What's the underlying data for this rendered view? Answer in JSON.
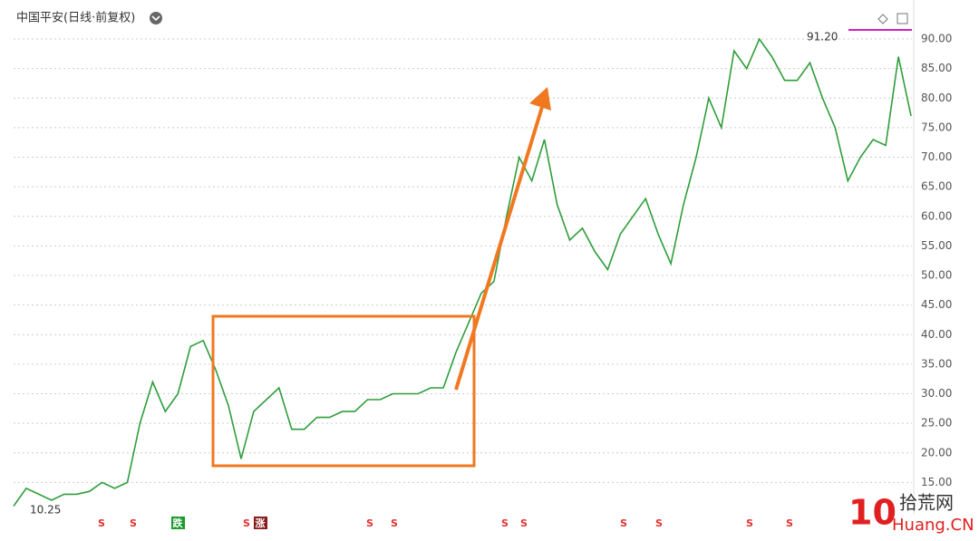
{
  "chart_data": {
    "type": "line",
    "title": "中国平安(日线·前复权)",
    "max_label": "91.20",
    "min_label": "10.25",
    "color": "#2e9e3a",
    "values": [
      11,
      14,
      13,
      12,
      13,
      13,
      13.5,
      15,
      14,
      15,
      25,
      32,
      27,
      30,
      38,
      39,
      34,
      28,
      19,
      27,
      29,
      31,
      24,
      24,
      26,
      26,
      27,
      27,
      29,
      29,
      30,
      30,
      30,
      31,
      31,
      37,
      42,
      47,
      49,
      60,
      70,
      66,
      73,
      62,
      56,
      58,
      54,
      51,
      57,
      60,
      63,
      57,
      52,
      62,
      70,
      80,
      75,
      88,
      85,
      90,
      87,
      83,
      83,
      86,
      80,
      75,
      66,
      70,
      73,
      72,
      87,
      77
    ],
    "ylim": [
      10,
      96.6
    ],
    "yticks": [
      {
        "value": 15,
        "label": "15.00"
      },
      {
        "value": 20,
        "label": "20.00"
      },
      {
        "value": 25,
        "label": "25.00"
      },
      {
        "value": 30,
        "label": "30.00"
      },
      {
        "value": 35,
        "label": "35.00"
      },
      {
        "value": 40,
        "label": "40.00"
      },
      {
        "value": 45,
        "label": "45.00"
      },
      {
        "value": 50,
        "label": "50.00"
      },
      {
        "value": 55,
        "label": "55.00"
      },
      {
        "value": 60,
        "label": "60.00"
      },
      {
        "value": 65,
        "label": "65.00"
      },
      {
        "value": 70,
        "label": "70.00"
      },
      {
        "value": 75,
        "label": "75.00"
      },
      {
        "value": 80,
        "label": "80.00"
      },
      {
        "value": 85,
        "label": "85.00"
      },
      {
        "value": 90,
        "label": "90.00"
      }
    ],
    "grid": true,
    "markers": [
      "S",
      "S",
      "跌",
      "S",
      "涨",
      "S",
      "S",
      "S",
      "S",
      "S",
      "S",
      "S",
      "S"
    ],
    "watermark": {
      "logo": "10",
      "name": "拾荒网",
      "site": "Huang.CN"
    }
  }
}
